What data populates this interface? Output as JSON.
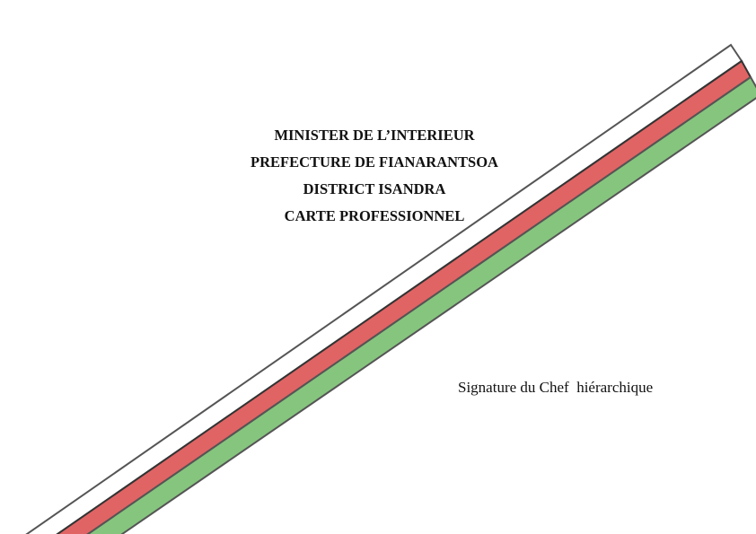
{
  "card": {
    "header": {
      "ministry": "MINISTER DE L’INTERIEUR",
      "prefecture": "PREFECTURE DE FIANARANTSOA",
      "district": "DISTRICT ISANDRA",
      "title": "CARTE PROFESSIONNEL"
    },
    "signature_label": "Signature du Chef  hiérarchique"
  },
  "flag_stripes": {
    "colors": {
      "white": "#ffffff",
      "red": "#e06464",
      "green": "#86c57e",
      "outline": "#404040"
    }
  }
}
